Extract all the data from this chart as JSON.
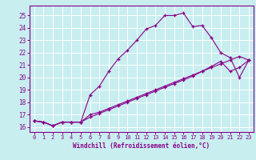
{
  "xlabel": "Windchill (Refroidissement éolien,°C)",
  "bg_color": "#c8eef0",
  "line_color": "#880088",
  "grid_color": "#ffffff",
  "xlim": [
    -0.5,
    23.5
  ],
  "ylim": [
    15.6,
    25.8
  ],
  "xticks": [
    0,
    1,
    2,
    3,
    4,
    5,
    6,
    7,
    8,
    9,
    10,
    11,
    12,
    13,
    14,
    15,
    16,
    17,
    18,
    19,
    20,
    21,
    22,
    23
  ],
  "yticks": [
    16,
    17,
    18,
    19,
    20,
    21,
    22,
    23,
    24,
    25
  ],
  "line1_x": [
    0,
    1,
    2,
    3,
    4,
    5,
    6,
    7,
    8,
    9,
    10,
    11,
    12,
    13,
    14,
    15,
    16,
    17,
    18,
    19,
    20,
    21,
    22,
    23
  ],
  "line1_y": [
    16.5,
    16.4,
    16.1,
    16.4,
    16.4,
    16.4,
    18.6,
    19.3,
    20.5,
    21.5,
    22.2,
    23.0,
    23.9,
    24.2,
    25.0,
    25.0,
    25.2,
    24.1,
    24.2,
    23.2,
    22.0,
    21.6,
    20.0,
    21.4
  ],
  "line2_x": [
    0,
    1,
    2,
    3,
    4,
    5,
    6,
    7,
    8,
    9,
    10,
    11,
    12,
    13,
    14,
    15,
    16,
    17,
    18,
    19,
    20,
    21,
    22,
    23
  ],
  "line2_y": [
    16.5,
    16.4,
    16.1,
    16.4,
    16.4,
    16.4,
    17.0,
    17.2,
    17.5,
    17.8,
    18.1,
    18.4,
    18.7,
    19.0,
    19.3,
    19.6,
    19.9,
    20.2,
    20.5,
    20.8,
    21.1,
    21.4,
    21.7,
    21.4
  ],
  "line3_x": [
    0,
    1,
    2,
    3,
    4,
    5,
    6,
    7,
    8,
    9,
    10,
    11,
    12,
    13,
    14,
    15,
    16,
    17,
    18,
    19,
    20,
    21,
    22,
    23
  ],
  "line3_y": [
    16.5,
    16.4,
    16.1,
    16.4,
    16.4,
    16.4,
    16.8,
    17.1,
    17.4,
    17.7,
    18.0,
    18.3,
    18.6,
    18.9,
    19.2,
    19.5,
    19.8,
    20.1,
    20.5,
    20.9,
    21.3,
    20.5,
    20.8,
    21.4
  ],
  "markersize": 3.5,
  "linewidth": 0.8,
  "tick_fontsize": 5.0,
  "xlabel_fontsize": 5.5
}
